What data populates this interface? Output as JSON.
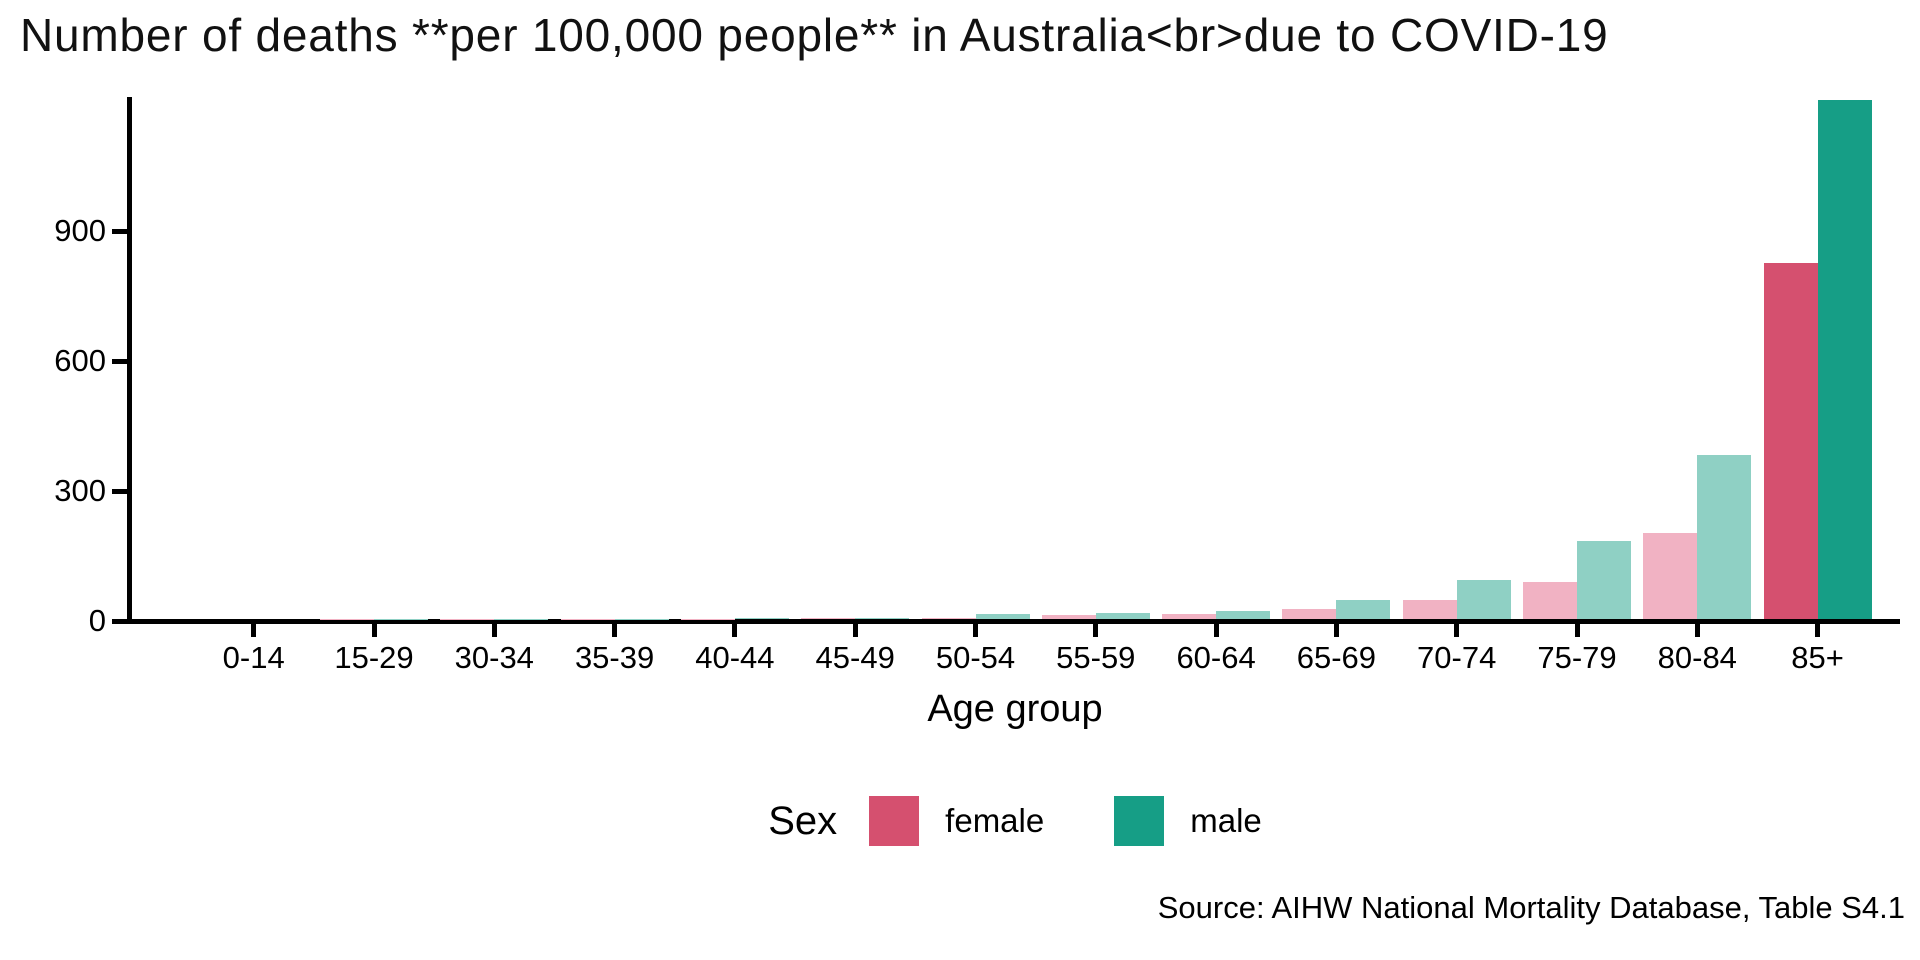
{
  "title": "Number of deaths **per 100,000 people** in Australia<br>due to COVID-19",
  "caption": "Source: AIHW National Mortality Database, Table S4.1",
  "chart_data": {
    "type": "bar",
    "title": "Number of deaths **per 100,000 people** in Australia<br>due to COVID-19",
    "xlabel": "Age group",
    "ylabel": "",
    "categories": [
      "0-14",
      "15-29",
      "30-34",
      "35-39",
      "40-44",
      "45-49",
      "50-54",
      "55-59",
      "60-64",
      "65-69",
      "70-74",
      "75-79",
      "80-84",
      "85+"
    ],
    "series": [
      {
        "name": "female",
        "values": [
          0.1,
          0.2,
          0.4,
          0.7,
          1,
          2,
          3,
          9,
          11,
          23,
          44,
          85,
          198,
          822
        ]
      },
      {
        "name": "male",
        "values": [
          0.1,
          0.3,
          0.6,
          1,
          1.5,
          3,
          11,
          14,
          18,
          45,
          89,
          180,
          379,
          1199
        ]
      }
    ],
    "yticks": [
      0,
      300,
      600,
      900
    ],
    "ylim": [
      0,
      1205
    ],
    "grid": false,
    "legend": {
      "title": "Sex",
      "position": "bottom",
      "entries": [
        "female",
        "male"
      ]
    },
    "highlight_category": "85+",
    "colors": {
      "female": "#D5506F",
      "male": "#169E86",
      "female_muted": "#F1B2C3",
      "male_muted": "#8FD0C4",
      "axis": "#000000"
    }
  }
}
